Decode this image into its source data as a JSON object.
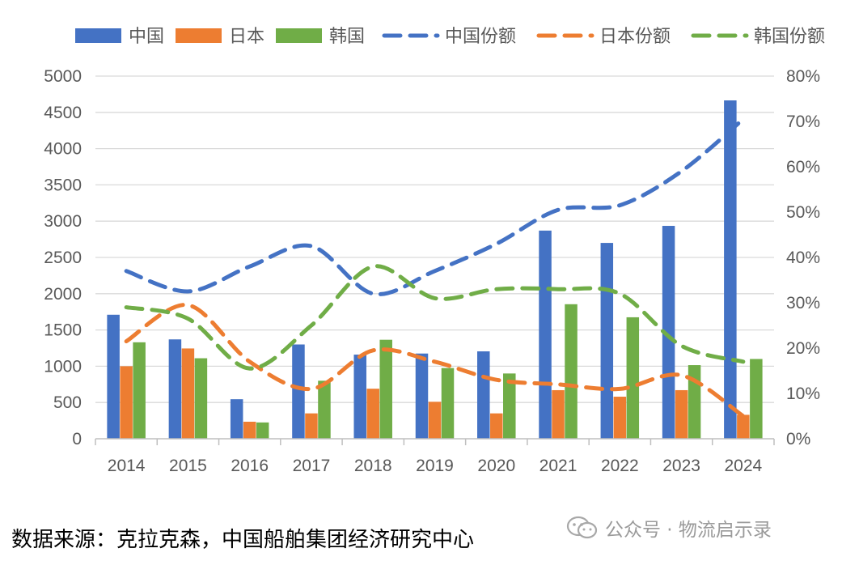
{
  "chart_data": {
    "type": "bar+line",
    "categories": [
      "2014",
      "2015",
      "2016",
      "2017",
      "2018",
      "2019",
      "2020",
      "2021",
      "2022",
      "2023",
      "2024"
    ],
    "bar_series": [
      {
        "name": "中国",
        "color": "#4472C4",
        "values": [
          1710,
          1370,
          545,
          1300,
          1160,
          1175,
          1205,
          2870,
          2700,
          2935,
          4665
        ]
      },
      {
        "name": "日本",
        "color": "#ED7D31",
        "values": [
          1000,
          1245,
          235,
          350,
          690,
          510,
          350,
          670,
          580,
          670,
          330
        ]
      },
      {
        "name": "韩国",
        "color": "#70AD47",
        "values": [
          1330,
          1110,
          225,
          800,
          1365,
          975,
          900,
          1855,
          1675,
          1015,
          1100
        ]
      }
    ],
    "line_series": [
      {
        "name": "中国份额",
        "color": "#4472C4",
        "axis": "right",
        "style": "dashed",
        "values": [
          37,
          32.5,
          38,
          42.5,
          32,
          37,
          43,
          50.5,
          51.5,
          59,
          70.5
        ]
      },
      {
        "name": "日本份额",
        "color": "#ED7D31",
        "axis": "right",
        "style": "dashed",
        "values": [
          21.5,
          29.5,
          17,
          11,
          19.5,
          17,
          13,
          12,
          11,
          14,
          5
        ]
      },
      {
        "name": "韩国份额",
        "color": "#70AD47",
        "axis": "right",
        "style": "dashed",
        "values": [
          29,
          26.5,
          15.5,
          25,
          38,
          31,
          33,
          33,
          32,
          20.5,
          17
        ]
      }
    ],
    "y_left": {
      "min": 0,
      "max": 5000,
      "step": 500,
      "tick_labels": [
        "0",
        "500",
        "1000",
        "1500",
        "2000",
        "2500",
        "3000",
        "3500",
        "4000",
        "4500",
        "5000"
      ]
    },
    "y_right": {
      "min": 0,
      "max": 80,
      "step": 10,
      "tick_labels": [
        "0%",
        "10%",
        "20%",
        "30%",
        "40%",
        "50%",
        "60%",
        "70%",
        "80%"
      ]
    },
    "grid": true,
    "legend_position": "top"
  },
  "source_text": "数据来源：克拉克森，中国船舶集团经济研究中心",
  "watermark_text": "公众号 · 物流启示录"
}
